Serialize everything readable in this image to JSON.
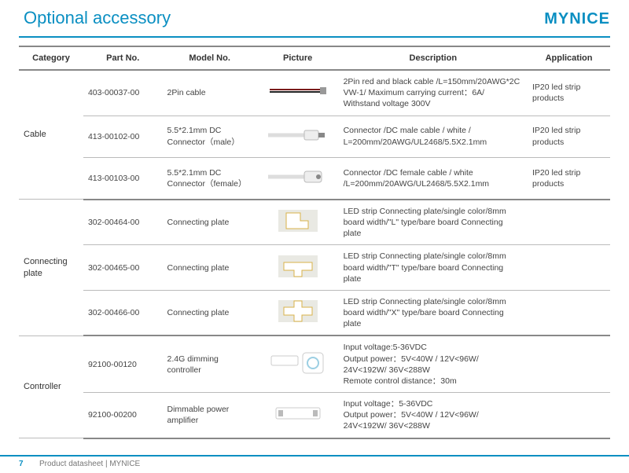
{
  "brand": "MYNICE",
  "title": "Optional accessory",
  "footer": {
    "page": "7",
    "text": "Product datasheet | MYNICE"
  },
  "columns": [
    "Category",
    "Part No.",
    "Model No.",
    "Picture",
    "Description",
    "Application"
  ],
  "groups": [
    {
      "category": "Cable",
      "rows": [
        {
          "part": "403-00037-00",
          "model": "2Pin cable",
          "desc": "2Pin red and black cable /L=150mm/20AWG*2C VW-1/ Maximum carrying current：6A/ Withstand voltage 300V",
          "app": "IP20 led strip products",
          "pic": "cable-2pin"
        },
        {
          "part": "413-00102-00",
          "model": "5.5*2.1mm DC Connector（male）",
          "desc": "Connector /DC male cable / white / L=200mm/20AWG/UL2468/5.5X2.1mm",
          "app": "IP20 led strip products",
          "pic": "dc-male"
        },
        {
          "part": "413-00103-00",
          "model": "5.5*2.1mm DC Connector（female）",
          "desc": "Connector /DC female cable / white /L=200mm/20AWG/UL2468/5.5X2.1mm",
          "app": "IP20 led strip products",
          "pic": "dc-female"
        }
      ]
    },
    {
      "category": "Connecting plate",
      "rows": [
        {
          "part": "302-00464-00",
          "model": "Connecting plate",
          "desc": "LED strip Connecting plate/single color/8mm board width/\"L\" type/bare board Connecting plate",
          "app": "",
          "pic": "plate-l"
        },
        {
          "part": "302-00465-00",
          "model": "Connecting plate",
          "desc": "LED strip Connecting plate/single color/8mm board width/\"T\" type/bare board Connecting plate",
          "app": "",
          "pic": "plate-t"
        },
        {
          "part": "302-00466-00",
          "model": "Connecting plate",
          "desc": "LED strip Connecting plate/single color/8mm board width/\"X\" type/bare board Connecting plate",
          "app": "",
          "pic": "plate-x"
        }
      ]
    },
    {
      "category": "Controller",
      "rows": [
        {
          "part": "92100-00120",
          "model": "2.4G dimming controller",
          "desc": "Input voltage:5-36VDC\nOutput power：5V<40W / 12V<96W/ 24V<192W/ 36V<288W\nRemote control distance：30m",
          "app": "",
          "pic": "ctrl-dim"
        },
        {
          "part": "92100-00200",
          "model": "Dimmable power amplifier",
          "desc": "Input voltage：5-36VDC\nOutput power：5V<40W / 12V<96W/ 24V<192W/ 36V<288W",
          "app": "",
          "pic": "ctrl-amp"
        }
      ]
    }
  ],
  "thumbs": {
    "cable-2pin": "<svg viewBox='0 0 80 34'><line x1='4' y1='15' x2='70' y2='15' stroke='#7a1a1a' stroke-width='2'/><line x1='4' y1='18' x2='70' y2='18' stroke='#222' stroke-width='2'/><rect x='68' y='12' width='8' height='9' fill='#999'/></svg>",
    "dc-male": "<svg viewBox='0 0 80 34'><line x1='2' y1='17' x2='50' y2='17' stroke='#ddd' stroke-width='5'/><rect x='48' y='11' width='18' height='12' rx='2' fill='#eee' stroke='#bbb'/><rect x='66' y='14' width='8' height='6' fill='#888'/></svg>",
    "dc-female": "<svg viewBox='0 0 80 34'><line x1='2' y1='17' x2='50' y2='17' stroke='#ddd' stroke-width='5'/><rect x='48' y='10' width='22' height='14' rx='3' fill='#eee' stroke='#bbb'/><circle cx='66' cy='17' r='3' fill='#888'/></svg>",
    "plate-l": "<svg viewBox='0 0 80 34'><rect x='15' y='3' width='50' height='28' fill='#e9e9e3'/><path d='M25 7 h18 v10 h10 v10 h-28 z' fill='#fff' stroke='#d9b24a'/></svg>",
    "plate-t": "<svg viewBox='0 0 80 34'><rect x='15' y='3' width='50' height='28' fill='#e9e9e3'/><path d='M22 12 h36 v10 h-13 v8 h-10 v-8 h-13 z' fill='#fff' stroke='#d9b24a'/></svg>",
    "plate-x": "<svg viewBox='0 0 80 34'><rect x='15' y='3' width='50' height='28' fill='#e9e9e3'/><path d='M35 4 h10 v8 h13 v10 h-13 v8 h-10 v-8 h-13 v-10 h13 z' fill='#fff' stroke='#d9b24a'/></svg>",
    "ctrl-dim": "<svg viewBox='0 0 80 34'><rect x='6' y='8' width='34' height='12' rx='2' fill='#fff' stroke='#ccc'/><rect x='46' y='4' width='26' height='26' rx='4' fill='#fff' stroke='#ccc'/><circle cx='59' cy='17' r='7' fill='none' stroke='#9ccfe3' stroke-width='2'/></svg>",
    "ctrl-amp": "<svg viewBox='0 0 80 34'><rect x='12' y='10' width='56' height='14' rx='2' fill='#fff' stroke='#ccc'/><rect x='15' y='13' width='6' height='8' fill='#bbb'/><rect x='59' y='13' width='6' height='8' fill='#bbb'/></svg>"
  }
}
